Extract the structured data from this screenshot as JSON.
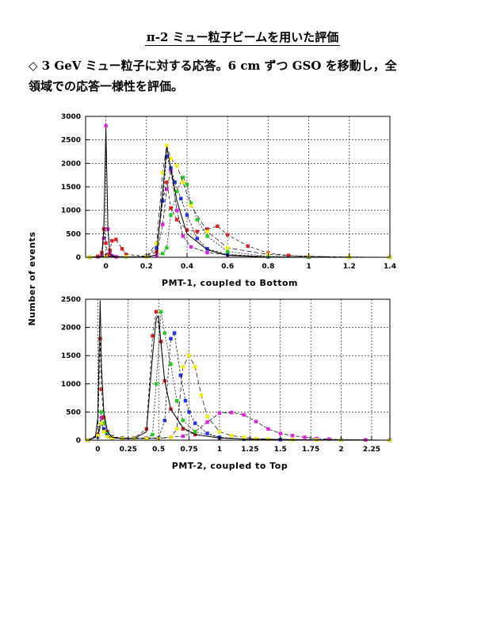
{
  "page": {
    "title": "π-2 ミュー粒子ビームを用いた評価",
    "bullet_symbol": "◇",
    "bullet_line1": "3 GeV ミュー粒子に対する応答。6 cm ずつ GSO を移動し，全",
    "bullet_line2": "領域での応答一様性を評価。",
    "shared_ylabel": "Number of events"
  },
  "colors": {
    "black": "#000000",
    "magenta": "#e61ee6",
    "red": "#e02020",
    "blue": "#1e32e6",
    "green": "#20d020",
    "yellow": "#f0f000"
  },
  "chart_data": [
    {
      "type": "line",
      "title": "",
      "xlabel": "PMT-1, coupled to Bottom",
      "ylabel": "Number of events",
      "xlim": [
        -0.1,
        1.4
      ],
      "ylim": [
        0,
        3000
      ],
      "x_ticks": [
        0,
        0.2,
        0.4,
        0.6,
        0.8,
        1,
        1.2,
        1.4
      ],
      "x_tick_labels": [
        "0",
        "0.2",
        "0.4",
        "0.6",
        "0.8",
        "1",
        "1.2",
        "1.4"
      ],
      "y_ticks": [
        0,
        500,
        1000,
        1500,
        2000,
        2500,
        3000
      ],
      "y_tick_labels": [
        "0",
        "500",
        "1000",
        "1500",
        "2000",
        "2500",
        "3000"
      ],
      "grid": true,
      "series": [
        {
          "color": "magenta",
          "x": [
            -0.08,
            -0.04,
            -0.02,
            -0.01,
            0,
            0.01,
            0.02,
            0.03,
            0.05,
            0.1,
            0.2,
            0.25,
            0.28,
            0.3,
            0.32,
            0.35,
            0.38,
            0.42,
            0.5,
            0.6,
            0.8,
            1.0,
            1.2,
            1.4
          ],
          "y": [
            0,
            10,
            50,
            400,
            2800,
            600,
            100,
            30,
            10,
            10,
            10,
            40,
            700,
            1450,
            1850,
            1000,
            450,
            220,
            100,
            50,
            10,
            5,
            2,
            0
          ]
        },
        {
          "color": "red",
          "x": [
            -0.08,
            -0.04,
            -0.02,
            -0.01,
            0,
            0.01,
            0.02,
            0.03,
            0.05,
            0.08,
            0.1,
            0.2,
            0.25,
            0.28,
            0.3,
            0.32,
            0.35,
            0.4,
            0.45,
            0.5,
            0.55,
            0.6,
            0.7,
            0.8,
            0.9,
            1.0,
            1.2,
            1.4
          ],
          "y": [
            0,
            20,
            100,
            600,
            300,
            50,
            150,
            350,
            380,
            180,
            60,
            20,
            120,
            1200,
            1600,
            1050,
            800,
            580,
            550,
            600,
            660,
            480,
            240,
            90,
            40,
            20,
            5,
            0
          ]
        },
        {
          "color": "blue",
          "x": [
            -0.08,
            0,
            0.1,
            0.2,
            0.25,
            0.28,
            0.3,
            0.32,
            0.34,
            0.37,
            0.4,
            0.45,
            0.5,
            0.6,
            0.8,
            1.0,
            1.2,
            1.4
          ],
          "y": [
            0,
            30,
            10,
            20,
            200,
            1200,
            2150,
            1900,
            1600,
            1250,
            900,
            400,
            180,
            60,
            10,
            3,
            1,
            0
          ]
        },
        {
          "color": "green",
          "x": [
            -0.08,
            0,
            0.1,
            0.2,
            0.28,
            0.3,
            0.32,
            0.35,
            0.38,
            0.4,
            0.42,
            0.45,
            0.5,
            0.6,
            0.8,
            1.0,
            1.2,
            1.4
          ],
          "y": [
            0,
            20,
            10,
            10,
            80,
            200,
            900,
            1400,
            1700,
            1550,
            1150,
            800,
            450,
            120,
            20,
            5,
            1,
            0
          ]
        },
        {
          "color": "yellow",
          "x": [
            -0.08,
            0,
            0.1,
            0.2,
            0.25,
            0.28,
            0.3,
            0.32,
            0.35,
            0.38,
            0.42,
            0.5,
            0.6,
            0.8,
            1.0,
            1.2,
            1.4
          ],
          "y": [
            0,
            20,
            10,
            10,
            300,
            1800,
            2380,
            2100,
            1950,
            1600,
            1100,
            550,
            200,
            60,
            20,
            5,
            0
          ]
        },
        {
          "color": "black",
          "x": [
            -0.08,
            -0.02,
            -0.01,
            0,
            0.01,
            0.02,
            0.05,
            0.1,
            0.2,
            0.25,
            0.28,
            0.3,
            0.32,
            0.35,
            0.4,
            0.5,
            0.6,
            0.8,
            1.4
          ],
          "y": [
            0,
            20,
            600,
            2750,
            600,
            60,
            10,
            5,
            5,
            50,
            1400,
            2350,
            1900,
            1200,
            500,
            160,
            40,
            5,
            0
          ]
        }
      ]
    },
    {
      "type": "line",
      "title": "",
      "xlabel": "PMT-2, coupled to Top",
      "ylabel": "Number of events",
      "xlim": [
        -0.1,
        2.4
      ],
      "ylim": [
        0,
        2500
      ],
      "x_ticks": [
        0,
        0.25,
        0.5,
        0.75,
        1,
        1.25,
        1.5,
        1.75,
        2,
        2.25
      ],
      "x_tick_labels": [
        "0",
        "0.25",
        "0.5",
        "0.75",
        "1",
        "1.25",
        "1.5",
        "1.75",
        "2",
        "2.25"
      ],
      "y_ticks": [
        0,
        500,
        1000,
        1500,
        2000,
        2500
      ],
      "y_tick_labels": [
        "0",
        "500",
        "1000",
        "1500",
        "2000",
        "2500"
      ],
      "grid": true,
      "series": [
        {
          "color": "magenta",
          "x": [
            -0.08,
            0,
            0.03,
            0.05,
            0.08,
            0.12,
            0.2,
            0.3,
            0.4,
            0.5,
            0.6,
            0.7,
            0.8,
            0.9,
            1.0,
            1.1,
            1.2,
            1.3,
            1.4,
            1.5,
            1.6,
            1.7,
            1.8,
            1.9,
            2.0,
            2.2,
            2.4
          ],
          "y": [
            0,
            100,
            400,
            150,
            60,
            40,
            40,
            40,
            40,
            40,
            50,
            70,
            150,
            320,
            480,
            490,
            450,
            330,
            200,
            120,
            80,
            50,
            30,
            20,
            10,
            5,
            0
          ]
        },
        {
          "color": "red",
          "x": [
            -0.08,
            0,
            0.02,
            0.03,
            0.05,
            0.08,
            0.12,
            0.2,
            0.3,
            0.4,
            0.45,
            0.48,
            0.52,
            0.55,
            0.6,
            0.7,
            0.8,
            1.0,
            1.2,
            1.5,
            2.0,
            2.4
          ],
          "y": [
            0,
            100,
            1800,
            900,
            400,
            150,
            60,
            40,
            40,
            200,
            1850,
            2280,
            1750,
            1050,
            550,
            200,
            100,
            40,
            20,
            10,
            5,
            0
          ]
        },
        {
          "color": "green",
          "x": [
            -0.08,
            0,
            0.03,
            0.05,
            0.08,
            0.12,
            0.2,
            0.3,
            0.4,
            0.45,
            0.48,
            0.52,
            0.55,
            0.6,
            0.65,
            0.7,
            0.8,
            1.0,
            1.2,
            1.5,
            2.0,
            2.4
          ],
          "y": [
            0,
            80,
            500,
            300,
            120,
            50,
            30,
            30,
            30,
            100,
            1000,
            2280,
            1900,
            1350,
            700,
            350,
            150,
            50,
            20,
            10,
            5,
            0
          ]
        },
        {
          "color": "blue",
          "x": [
            -0.08,
            0,
            0.03,
            0.05,
            0.08,
            0.12,
            0.2,
            0.3,
            0.4,
            0.5,
            0.55,
            0.6,
            0.63,
            0.68,
            0.72,
            0.75,
            0.8,
            0.9,
            1.0,
            1.2,
            1.5,
            2.0,
            2.4
          ],
          "y": [
            0,
            60,
            300,
            200,
            80,
            40,
            30,
            30,
            30,
            40,
            350,
            1800,
            1900,
            1150,
            700,
            500,
            300,
            120,
            50,
            20,
            10,
            5,
            0
          ]
        },
        {
          "color": "yellow",
          "x": [
            -0.08,
            0,
            0.03,
            0.05,
            0.08,
            0.12,
            0.2,
            0.3,
            0.4,
            0.5,
            0.6,
            0.65,
            0.7,
            0.75,
            0.8,
            0.85,
            0.9,
            1.0,
            1.1,
            1.2,
            1.3,
            1.4,
            1.6,
            1.8,
            2.0,
            2.4
          ],
          "y": [
            0,
            80,
            300,
            150,
            60,
            40,
            30,
            30,
            30,
            30,
            50,
            200,
            1300,
            1500,
            1300,
            800,
            420,
            150,
            80,
            50,
            30,
            20,
            10,
            5,
            3,
            0
          ]
        },
        {
          "color": "black",
          "x": [
            -0.08,
            -0.02,
            0,
            0.02,
            0.03,
            0.05,
            0.08,
            0.12,
            0.2,
            0.3,
            0.4,
            0.45,
            0.48,
            0.5,
            0.52,
            0.55,
            0.6,
            0.7,
            0.8,
            1.0,
            1.2,
            1.5,
            2.0,
            2.4
          ],
          "y": [
            0,
            50,
            400,
            2480,
            1300,
            500,
            150,
            50,
            30,
            30,
            150,
            1500,
            2150,
            2200,
            1700,
            1050,
            550,
            220,
            100,
            40,
            20,
            10,
            5,
            0
          ]
        }
      ]
    }
  ]
}
